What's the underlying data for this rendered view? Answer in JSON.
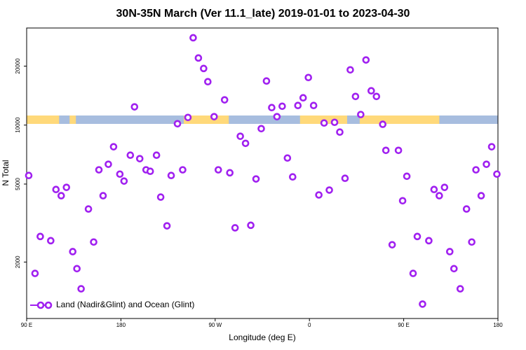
{
  "chart_data": {
    "type": "scatter",
    "title": "30N-35N March (Ver 11.1_late)   2019-01-01 to 2023-04-30",
    "xlabel": "Longitude (deg E)",
    "ylabel": "N Total",
    "xlim": [
      90,
      540
    ],
    "xticks": [
      {
        "value": 90,
        "label": "90 E"
      },
      180,
      {
        "value": 270,
        "label": "90 W"
      },
      {
        "value": 360,
        "label": "0"
      },
      {
        "value": 450,
        "label": "90 E"
      },
      {
        "value": 540,
        "label": "180"
      }
    ],
    "ylim": [
      1030,
      31300
    ],
    "yticks": [
      2000,
      5000,
      10000,
      20000
    ],
    "log_y": true,
    "legend": "bottom-left",
    "land_color": "#ffd97a",
    "ocean_color": "#a7bddf",
    "land_segments": [
      [
        90,
        121
      ],
      [
        131,
        137
      ],
      [
        240,
        283
      ],
      [
        351,
        396
      ],
      [
        408,
        484
      ]
    ],
    "series": [
      {
        "name": "Land (Nadir&Glint) and Ocean (Glint)",
        "color": "#a020f0",
        "x": [
          92,
          98,
          103,
          113,
          118,
          123,
          128,
          134,
          138,
          142,
          149,
          154,
          159,
          163,
          168,
          173,
          179,
          183,
          189,
          193,
          198,
          204,
          208,
          214,
          218,
          224,
          228,
          234,
          239,
          244,
          249,
          254,
          259,
          263,
          269,
          273,
          279,
          284,
          289,
          294,
          299,
          304,
          309,
          314,
          319,
          324,
          329,
          334,
          339,
          344,
          349,
          354,
          359,
          364,
          369,
          374,
          379,
          384,
          389,
          394,
          399,
          404,
          409,
          414,
          419,
          424,
          430,
          433,
          439,
          445,
          449,
          453,
          459,
          463,
          468,
          474,
          479,
          484,
          489,
          494,
          498,
          504,
          510,
          515,
          519,
          524,
          529,
          534,
          539
        ],
        "values": [
          5530,
          1750,
          2700,
          2570,
          4690,
          4360,
          4810,
          2260,
          1850,
          1460,
          3730,
          2530,
          5910,
          4360,
          6310,
          7750,
          5620,
          5180,
          7020,
          12390,
          6740,
          5910,
          5810,
          7020,
          4290,
          3060,
          5530,
          10160,
          5910,
          10940,
          27900,
          22000,
          19450,
          16650,
          11040,
          5910,
          13450,
          5710,
          2990,
          8770,
          8070,
          3080,
          5310,
          9590,
          16790,
          12280,
          11040,
          12480,
          6790,
          5440,
          12590,
          13780,
          17490,
          12590,
          4400,
          10250,
          4660,
          10330,
          9210,
          5350,
          19140,
          14000,
          11320,
          21500,
          14960,
          14000,
          10090,
          7430,
          2450,
          7430,
          4110,
          5480,
          1750,
          2700,
          1220,
          2570,
          4690,
          4360,
          4810,
          2260,
          1850,
          1460,
          3730,
          2530,
          5910,
          4360,
          6310,
          7750,
          5620
        ]
      }
    ]
  }
}
